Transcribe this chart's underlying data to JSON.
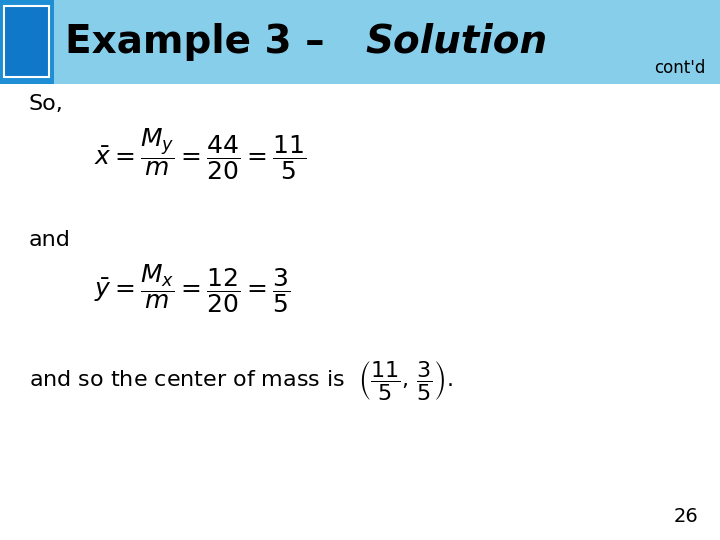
{
  "title_prefix": "Example 3 – ",
  "title_italic": "Solution",
  "contd": "cont'd",
  "header_bg_color": "#87CEEB",
  "header_dark_rect_color": "#1E8FD5",
  "header_inner_rect_color": "#1078C8",
  "header_text_color": "#000000",
  "body_bg_color": "#FFFFFF",
  "page_number": "26",
  "so_text": "So,",
  "and_text": "and",
  "and_so_text": "and so the center of mass is",
  "font_size_title": 28,
  "font_size_body": 16,
  "font_size_eq": 18,
  "font_size_contd": 12,
  "font_size_page": 14
}
